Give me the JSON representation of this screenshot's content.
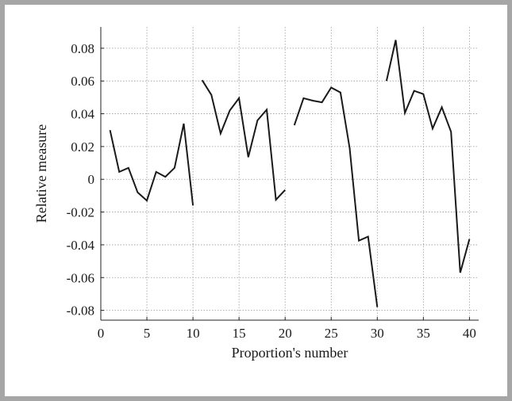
{
  "chart_data": {
    "type": "line",
    "title": "",
    "xlabel": "Proportion's number",
    "ylabel": "Relative measure",
    "xlim": [
      0,
      41
    ],
    "ylim": [
      -0.086,
      0.093
    ],
    "grid": true,
    "x_ticks": [
      0,
      5,
      10,
      15,
      20,
      25,
      30,
      35,
      40
    ],
    "x_tick_labels": [
      "0",
      "5",
      "10",
      "15",
      "20",
      "25",
      "30",
      "35",
      "40"
    ],
    "y_ticks": [
      0.08,
      0.06,
      0.04,
      0.02,
      0,
      -0.02,
      -0.04,
      -0.06,
      -0.08
    ],
    "y_tick_labels": [
      "0.08",
      "0.06",
      "0.04",
      "0.02",
      "0",
      "-0.02",
      "-0.04",
      "-0.06",
      "-0.08"
    ],
    "series": [
      {
        "x": [
          1,
          2,
          3,
          4,
          5,
          6,
          7,
          8,
          9,
          10
        ],
        "y": [
          0.03,
          0.0045,
          0.007,
          -0.008,
          -0.013,
          0.0045,
          0.0015,
          0.007,
          0.034,
          -0.016
        ]
      },
      {
        "x": [
          11,
          12,
          13,
          14,
          15,
          16,
          17,
          18,
          19,
          20
        ],
        "y": [
          0.0605,
          0.0515,
          0.028,
          0.042,
          0.0495,
          0.0135,
          0.036,
          0.0425,
          -0.0125,
          -0.0065
        ]
      },
      {
        "x": [
          21,
          22,
          23,
          24,
          25,
          26,
          27,
          28,
          29,
          30
        ],
        "y": [
          0.033,
          0.0495,
          0.048,
          0.047,
          0.056,
          0.053,
          0.019,
          -0.0375,
          -0.035,
          -0.078
        ]
      },
      {
        "x": [
          31,
          32,
          33,
          34,
          35,
          36,
          37,
          38,
          39,
          40
        ],
        "y": [
          0.06,
          0.085,
          0.0405,
          0.054,
          0.052,
          0.031,
          0.044,
          0.029,
          -0.057,
          -0.0365
        ]
      }
    ]
  }
}
